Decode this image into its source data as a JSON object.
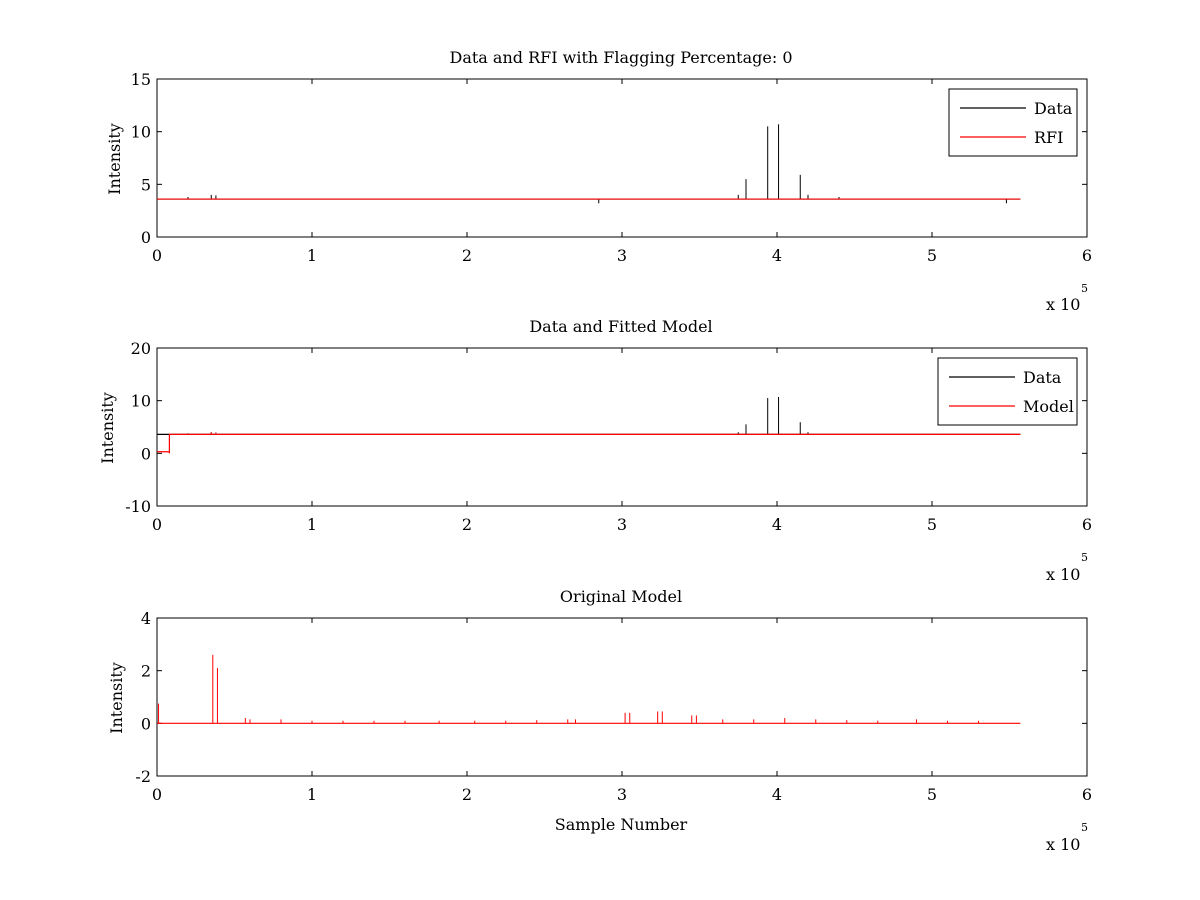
{
  "chart_data": [
    {
      "type": "line",
      "title": "Data and RFI with Flagging Percentage: 0",
      "xlabel": "",
      "ylabel": "Intensity",
      "xlim": [
        0,
        600000
      ],
      "ylim": [
        0,
        15
      ],
      "xticks": [
        0,
        1,
        2,
        3,
        4,
        5,
        6
      ],
      "yticks": [
        0,
        5,
        10,
        15
      ],
      "x_multiplier": "x 10",
      "x_multiplier_exponent": "5",
      "legend": "top-right",
      "series": [
        {
          "name": "Data",
          "color": "#000000",
          "baseline": 3.6,
          "x_end": 557000,
          "spikes": [
            [
              20000,
              3.8
            ],
            [
              35000,
              4.0
            ],
            [
              38000,
              3.95
            ],
            [
              285000,
              3.2
            ],
            [
              375000,
              4.0
            ],
            [
              380000,
              5.5
            ],
            [
              394000,
              10.5
            ],
            [
              401000,
              10.7
            ],
            [
              415000,
              5.9
            ],
            [
              420000,
              4.0
            ],
            [
              440000,
              3.8
            ],
            [
              548000,
              3.2
            ]
          ]
        },
        {
          "name": "RFI",
          "color": "#ff0000",
          "baseline": 3.6,
          "x_end": 557000,
          "spikes": []
        }
      ]
    },
    {
      "type": "line",
      "title": "Data and Fitted Model",
      "xlabel": "",
      "ylabel": "Intensity",
      "xlim": [
        0,
        600000
      ],
      "ylim": [
        -10,
        20
      ],
      "xticks": [
        0,
        1,
        2,
        3,
        4,
        5,
        6
      ],
      "yticks": [
        -10,
        0,
        10,
        20
      ],
      "x_multiplier": "x 10",
      "x_multiplier_exponent": "5",
      "legend": "top-right",
      "series": [
        {
          "name": "Data",
          "color": "#000000",
          "baseline": 3.6,
          "x_end": 557000,
          "spikes": [
            [
              20000,
              3.8
            ],
            [
              35000,
              4.0
            ],
            [
              38000,
              3.95
            ],
            [
              375000,
              4.0
            ],
            [
              380000,
              5.5
            ],
            [
              394000,
              10.5
            ],
            [
              401000,
              10.7
            ],
            [
              415000,
              5.9
            ],
            [
              420000,
              4.0
            ]
          ]
        },
        {
          "name": "Model",
          "color": "#ff0000",
          "baseline": 3.6,
          "x_end": 557000,
          "step": [
            [
              0,
              0.3
            ],
            [
              8000,
              0.0
            ]
          ],
          "spikes": [
            [
              35000,
              4.0
            ],
            [
              38000,
              3.9
            ]
          ]
        }
      ]
    },
    {
      "type": "line",
      "title": "Original Model",
      "xlabel": "Sample Number",
      "ylabel": "Intensity",
      "xlim": [
        0,
        600000
      ],
      "ylim": [
        -2,
        4
      ],
      "xticks": [
        0,
        1,
        2,
        3,
        4,
        5,
        6
      ],
      "yticks": [
        -2,
        0,
        2,
        4
      ],
      "x_multiplier": "x 10",
      "x_multiplier_exponent": "5",
      "series": [
        {
          "name": "",
          "color": "#ff0000",
          "baseline": 0,
          "x_end": 557000,
          "spikes": [
            [
              1000,
              0.75
            ],
            [
              36000,
              2.6
            ],
            [
              39000,
              2.1
            ],
            [
              57000,
              0.2
            ],
            [
              60000,
              0.15
            ],
            [
              80000,
              0.15
            ],
            [
              100000,
              0.1
            ],
            [
              120000,
              0.1
            ],
            [
              140000,
              0.1
            ],
            [
              160000,
              0.1
            ],
            [
              182000,
              0.1
            ],
            [
              205000,
              0.1
            ],
            [
              225000,
              0.1
            ],
            [
              245000,
              0.12
            ],
            [
              265000,
              0.15
            ],
            [
              270000,
              0.15
            ],
            [
              302000,
              0.4
            ],
            [
              305000,
              0.4
            ],
            [
              323000,
              0.45
            ],
            [
              326000,
              0.45
            ],
            [
              345000,
              0.3
            ],
            [
              348000,
              0.3
            ],
            [
              365000,
              0.15
            ],
            [
              385000,
              0.15
            ],
            [
              405000,
              0.2
            ],
            [
              425000,
              0.15
            ],
            [
              445000,
              0.12
            ],
            [
              465000,
              0.1
            ],
            [
              490000,
              0.15
            ],
            [
              510000,
              0.1
            ],
            [
              530000,
              0.1
            ]
          ]
        }
      ]
    }
  ]
}
